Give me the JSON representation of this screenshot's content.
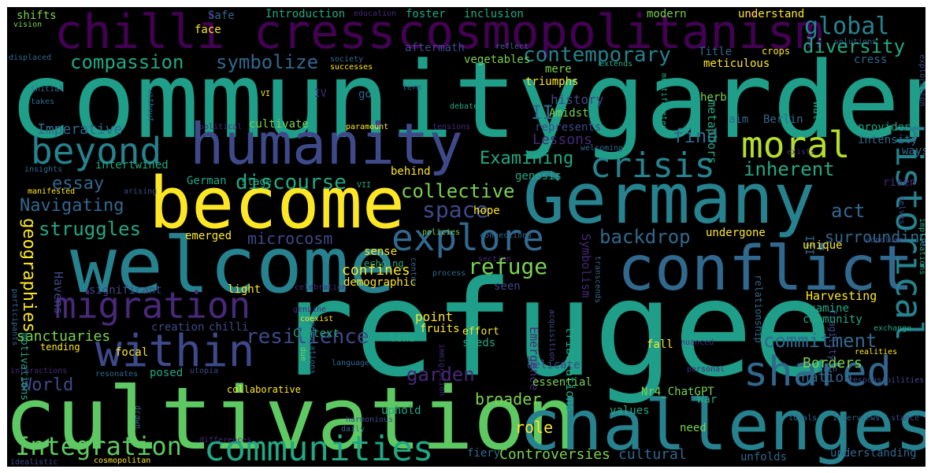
{
  "palette": {
    "background": "#000000",
    "frame": "#ffffff",
    "yellow": "#fde725",
    "lightgreen": "#7ad151",
    "green": "#5ec962",
    "midgreen": "#22a884",
    "teal": "#1f9e89",
    "cyan": "#26828e",
    "blue": "#31688e",
    "indigo": "#3e4989",
    "purple": "#482878",
    "darkpurple": "#440154"
  },
  "words": {
    "refugee": "refugee",
    "community": "community",
    "garden": "garden",
    "cultivation": "cultivation",
    "welcome": "welcome",
    "become": "become",
    "germany": "Germany",
    "challenges": "challenges",
    "humanity": "humanity",
    "conflict": "conflict",
    "chilli_cress": "chilli cress",
    "cosmopolitanism": "cosmopolitanism",
    "historical": "historical",
    "within": "within",
    "shared": "shared",
    "explore": "explore",
    "migration": "migration",
    "moral": "moral",
    "crisis": "crisis",
    "beyond": "beyond",
    "communities": "communities",
    "integration": "Integration",
    "global": "global",
    "diversity": "diversity",
    "compassion": "compassion",
    "symbolize": "symbolize",
    "contemporary": "contemporary",
    "examining": "Examining",
    "inherent": "inherent",
    "discourse": "discourse",
    "collective": "collective",
    "space": "space",
    "essay": "essay",
    "navigating": "Navigating",
    "struggles": "struggles",
    "backdrop": "backdrop",
    "refuge": "refuge",
    "act": "act",
    "find": "find",
    "resilience": "resilience",
    "commitment": "commitment",
    "geographies": "geographies",
    "garden_small": "garden",
    "world": "World",
    "borders": "Borders",
    "microcosm": "microcosm",
    "imperative": "Imperative",
    "lessons": "Lessons",
    "surrounding": "surrounding",
    "controversies": "Controversies",
    "cultural": "cultural",
    "ii": "II",
    "confines": "confines",
    "point": "point",
    "role": "role",
    "broader": "broader",
    "nation": "nation",
    "history": "history",
    "symbolism": "Symbolism",
    "emergence": "Emergence",
    "tribulations": "tribulations",
    "harvesting": "Harvesting",
    "sanctuaries": "sanctuaries",
    "havens": "Havens",
    "introduction": "Introduction",
    "foster": "foster",
    "inclusion": "inclusion",
    "modern": "modern",
    "understand": "understand",
    "safe": "Safe",
    "shifts": "shifts",
    "face": "face",
    "title": "Title",
    "crops": "crops",
    "cress": "cress",
    "meticulous": "meticulous",
    "aftermath": "aftermath",
    "vegetables": "vegetables",
    "mere": "mere",
    "triumphs": "triumphs",
    "herb": "herb",
    "metaphors": "metaphors",
    "go": "go",
    "iv": "IV",
    "cultivate": "cultivate",
    "amidst": "Amidst",
    "represents": "represents",
    "aim": "aim",
    "berlin": "Berlin",
    "wall": "Wall",
    "provides": "provides",
    "intensity": "intensity",
    "ways": "ways",
    "intertwined": "intertwined",
    "genesis": "genesis",
    "behind": "behind",
    "german": "German",
    "stage": "stage",
    "risen": "risen",
    "hope": "hope",
    "emerged": "emerged",
    "undergone": "undergone",
    "unique": "unique",
    "sense": "sense",
    "demographic": "demographic",
    "echoing": "echoing",
    "significant": "significant",
    "light": "light",
    "seen": "seen",
    "examine": "examine",
    "community_small": "community",
    "chilli": "chilli",
    "creation": "creation",
    "context": "Context",
    "fruits": "fruits",
    "lens": "lens",
    "sheds": "sheds",
    "effort": "effort",
    "fall": "fall",
    "focal": "focal",
    "delicate": "delicate",
    "essential": "essential",
    "posed": "posed",
    "values": "values",
    "war": "War",
    "uphold": "uphold",
    "collaborative": "collaborative",
    "need": "need",
    "nr4": "Nr4_ChatGPT",
    "fiery": "fiery",
    "unfolds": "unfolds",
    "understanding": "understanding",
    "motivations": "motivations",
    "tending": "tending",
    "iii": "III",
    "fragility": "fragility",
    "relationship": "relationship",
    "vii": "VII",
    "v": "V",
    "vi": "VI",
    "education": "education",
    "vision": "vision",
    "displaced": "displaced",
    "society": "society",
    "reflect": "reflect",
    "solutions": "solutions",
    "extends": "extends",
    "successes": "successes",
    "initial": "initial",
    "takes": "takes",
    "term": "term",
    "debates": "debates",
    "without": "without",
    "political": "political",
    "paramount": "paramount",
    "tensions": "tensions",
    "multifaceted": "multifaceted",
    "exploration": "exploration",
    "welcoming": "welcoming",
    "exists": "exists",
    "insights": "insights",
    "arising": "arising",
    "policies": "policies",
    "delves": "delves",
    "manifested": "manifested",
    "connections": "connections",
    "center": "center",
    "transcends": "transcends",
    "implications": "implications",
    "process": "process",
    "section": "section",
    "conclude": "conclude",
    "celebration": "celebration",
    "genuine": "genuine",
    "coexist": "coexist",
    "participants": "participants",
    "acquisition": "acquisition",
    "due": "due",
    "immigration": "immigration",
    "nuanced": "nuanced",
    "exchange": "exchange",
    "interactions": "interactions",
    "language": "language",
    "realities": "realities",
    "personal": "personal",
    "gain": "gain",
    "resonates": "resonates",
    "utopia": "utopia",
    "populations": "populations",
    "responsibilities": "responsibilities",
    "drawn": "drawn",
    "harmonious": "harmonious",
    "ideals": "ideals",
    "interviews": "interviews",
    "stance": "stance",
    "daily": "daily",
    "differences": "differences",
    "idealistic": "idealistic",
    "cosmopolitan": "cosmopolitan"
  }
}
